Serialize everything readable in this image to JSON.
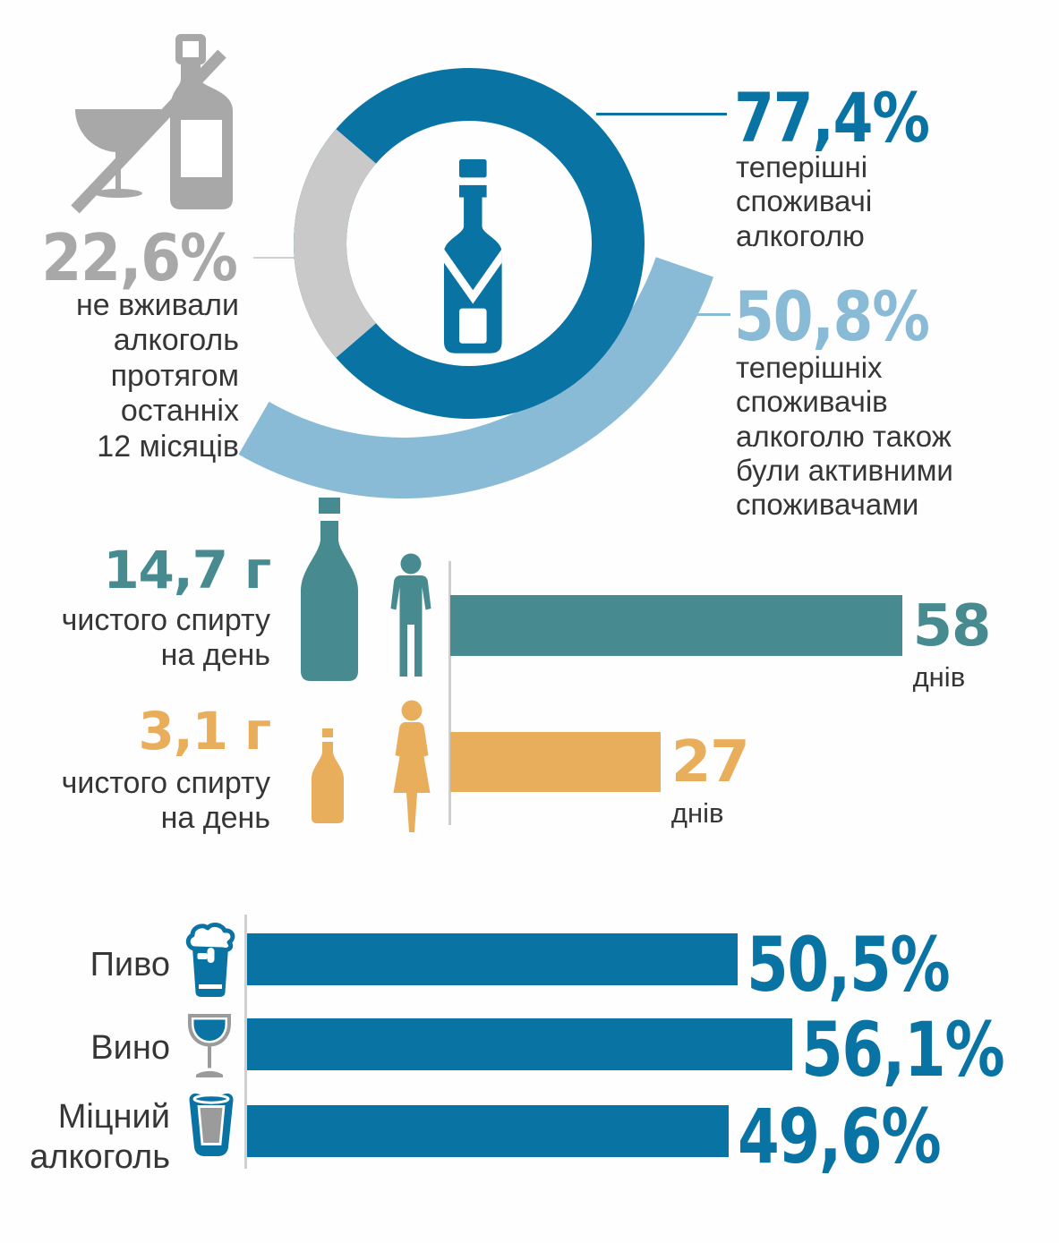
{
  "palette": {
    "blue": "#0973a4",
    "light_blue": "#8abbd6",
    "teal": "#478b90",
    "orange": "#e9ae5c",
    "gray_number": "#a8a8a8",
    "gray_segment": "#c9c9c9",
    "gray_line": "#cfcfcf",
    "icon_gray": "#a8a8a8",
    "glass_gray": "#9b9b9b",
    "text_dark": "#363636"
  },
  "donut_section": {
    "abstainers": {
      "value": 22.6,
      "label": "22,6%",
      "description": "не вживали\nалкоголь\nпротягом\nостанніх\n12 місяців"
    },
    "current": {
      "value": 77.4,
      "label": "77,4%",
      "description": "теперішні\nспоживачі\nалкоголю"
    },
    "active": {
      "value": 50.8,
      "label": "50,8%",
      "description": "теперішніх\nспоживачів\nалкоголю також\nбули активними\nспоживачами"
    }
  },
  "consumption_section": {
    "male": {
      "amount_label": "14,7 г",
      "description": "чистого спирту\nна день",
      "days": 58,
      "days_label": "58",
      "days_unit": "днів"
    },
    "female": {
      "amount_label": "3,1 г",
      "description": "чистого спирту\nна день",
      "days": 27,
      "days_label": "27",
      "days_unit": "днів"
    }
  },
  "beverage_section": {
    "items": [
      {
        "label": "Пиво",
        "value": 50.5,
        "value_label": "50,5%"
      },
      {
        "label": "Вино",
        "value": 56.1,
        "value_label": "56,1%"
      },
      {
        "label": "Міцний\nалкоголь",
        "value": 49.6,
        "value_label": "49,6%"
      }
    ]
  },
  "chart_data": [
    {
      "type": "pie",
      "title": "Вживання алкоголю",
      "labels": [
        "теперішні споживачі алкоголю",
        "не вживали алкоголь протягом останніх 12 місяців"
      ],
      "values": [
        77.4,
        22.6
      ],
      "overlay_arc": {
        "label": "теперішніх споживачів алкоголю також були активними споживачами",
        "value": 50.8
      },
      "legend_position": "sides"
    },
    {
      "type": "bar",
      "orientation": "horizontal",
      "categories": [
        "male",
        "female"
      ],
      "values": [
        58,
        27
      ],
      "value_unit": "днів",
      "annotations": [
        "14,7 г чистого спирту на день",
        "3,1 г чистого спирту на день"
      ],
      "colors": [
        "#478b90",
        "#e9ae5c"
      ]
    },
    {
      "type": "bar",
      "orientation": "horizontal",
      "categories": [
        "Пиво",
        "Вино",
        "Міцний алкоголь"
      ],
      "values": [
        50.5,
        56.1,
        49.6
      ],
      "value_unit": "%",
      "colors": [
        "#0973a4",
        "#0973a4",
        "#0973a4"
      ]
    }
  ]
}
